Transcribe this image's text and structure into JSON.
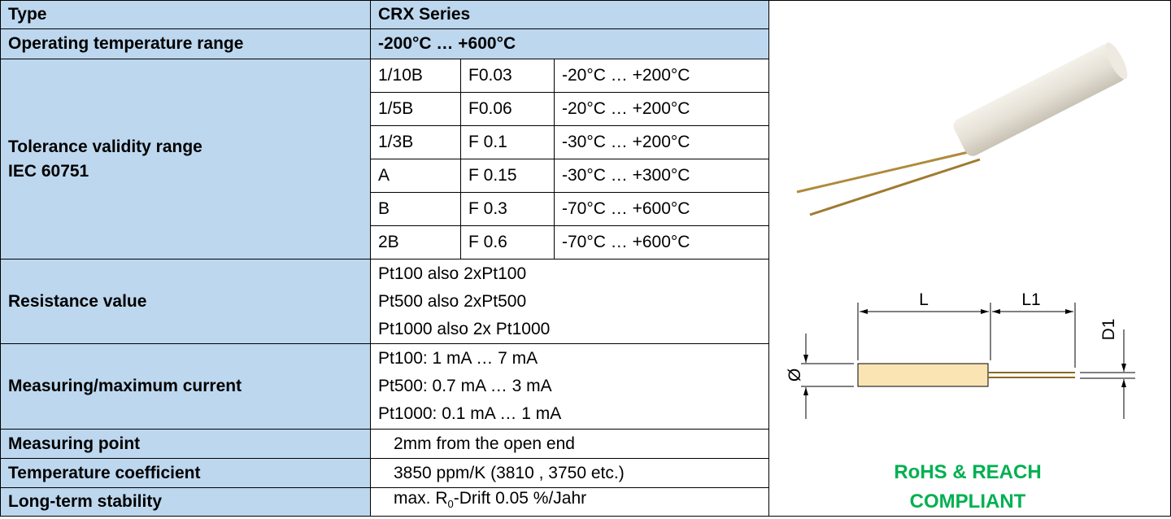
{
  "table": {
    "rows": [
      {
        "label": "Type",
        "value": "CRX Series"
      },
      {
        "label": "Operating temperature range",
        "value": "-200°C … +600°C"
      },
      {
        "label": [
          "Tolerance validity range",
          "IEC 60751"
        ],
        "subrows": [
          [
            "1/10B",
            "F0.03",
            "-20°C … +200°C"
          ],
          [
            "1/5B",
            "F0.06",
            "-20°C … +200°C"
          ],
          [
            "1/3B",
            "F 0.1",
            "-30°C … +200°C"
          ],
          [
            "A",
            "F 0.15",
            "-30°C … +300°C"
          ],
          [
            "B",
            "F 0.3",
            "-70°C … +600°C"
          ],
          [
            "2B",
            "F 0.6",
            "-70°C … +600°C"
          ]
        ]
      },
      {
        "label": "Resistance value",
        "lines": [
          "Pt100 also 2xPt100",
          "Pt500 also 2xPt500",
          "Pt1000 also 2x Pt1000"
        ]
      },
      {
        "label": "Measuring/maximum current",
        "lines": [
          "Pt100: 1 mA … 7 mA",
          "Pt500: 0.7 mA … 3 mA",
          "Pt1000: 0.1 mA … 1 mA"
        ]
      },
      {
        "label": "Measuring point",
        "value": "2mm from the open end"
      },
      {
        "label": "Temperature coefficient",
        "value": "3850 ppm/K (3810 , 3750 etc.)"
      },
      {
        "label": "Long-term stability",
        "value_parts": [
          "max. R",
          "0",
          "-Drift 0.05 %/Jahr"
        ]
      }
    ]
  },
  "drawing": {
    "dimensions": [
      "L",
      "L1",
      "D1",
      "Ø"
    ]
  },
  "compliance": [
    "RoHS & REACH",
    "COMPLIANT"
  ]
}
